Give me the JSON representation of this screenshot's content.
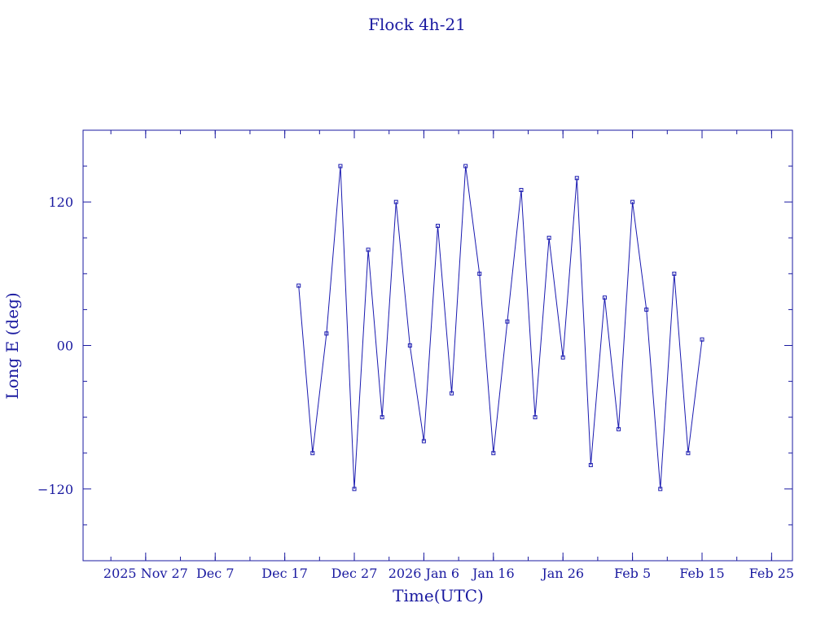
{
  "chart_data": {
    "type": "line",
    "title": "Flock 4h-21",
    "xlabel": "Time(UTC)",
    "ylabel": "Long E (deg)",
    "x_tick_labels": [
      "2025 Nov 27",
      "Dec 7",
      "Dec 17",
      "Dec 27",
      "2026 Jan 6",
      "Jan 16",
      "Jan 26",
      "Feb 5",
      "Feb 15",
      "Feb 25"
    ],
    "y_tick_labels": [
      "−120",
      "00",
      "120"
    ],
    "y_tick_values": [
      -120,
      0,
      120
    ],
    "xlim": [
      "2025-11-18",
      "2026-02-28"
    ],
    "ylim": [
      -180,
      180
    ],
    "grid": false,
    "series": [
      {
        "color": "#1a1ab0",
        "x": [
          "2025-12-19",
          "2025-12-21",
          "2025-12-23",
          "2025-12-25",
          "2025-12-27",
          "2025-12-29",
          "2025-12-31",
          "2026-01-02",
          "2026-01-04",
          "2026-01-06",
          "2026-01-08",
          "2026-01-10",
          "2026-01-12",
          "2026-01-14",
          "2026-01-16",
          "2026-01-18",
          "2026-01-20",
          "2026-01-22",
          "2026-01-24",
          "2026-01-26",
          "2026-01-28",
          "2026-01-30",
          "2026-02-01",
          "2026-02-03",
          "2026-02-05",
          "2026-02-07",
          "2026-02-09",
          "2026-02-11",
          "2026-02-13",
          "2026-02-15"
        ],
        "y": [
          50,
          -90,
          10,
          150,
          -120,
          80,
          -60,
          120,
          0,
          -80,
          100,
          -40,
          150,
          60,
          -90,
          20,
          130,
          -60,
          90,
          -10,
          140,
          -100,
          40,
          -70,
          120,
          30,
          -120,
          60,
          -90,
          5
        ]
      }
    ]
  }
}
